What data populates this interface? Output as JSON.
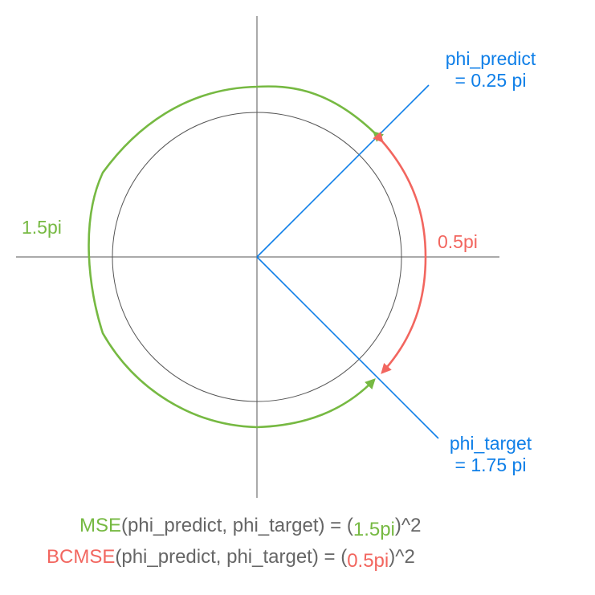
{
  "diagram": {
    "colors": {
      "axis": "#555555",
      "circle": "#555555",
      "vector": "#0f7fe8",
      "mse": "#76b942",
      "bcmse": "#f2665f",
      "text": "#666666"
    },
    "labels": {
      "phi_predict_line1": "phi_predict",
      "phi_predict_line2": "= 0.25 pi",
      "phi_target_line1": "phi_target",
      "phi_target_line2": "= 1.75 pi",
      "mse_arc": "1.5pi",
      "bcmse_arc": "0.5pi"
    },
    "formulas": {
      "mse": {
        "name": "MSE",
        "args": "(phi_predict, phi_target) = (",
        "value": "1.5pi",
        "suffix": ")^2"
      },
      "bcmse": {
        "name": "BCMSE",
        "args": "(phi_predict, phi_target) = (",
        "value": "0.5pi",
        "suffix": ")^2"
      }
    }
  }
}
